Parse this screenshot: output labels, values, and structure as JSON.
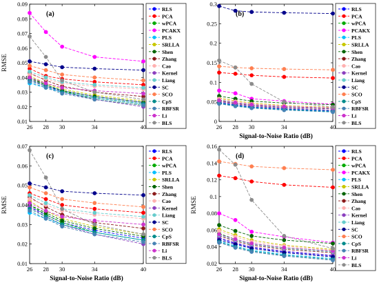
{
  "series_styles": [
    {
      "name": "RLS",
      "color": "#0000ff"
    },
    {
      "name": "PCA",
      "color": "#ff0000"
    },
    {
      "name": "wPCA",
      "color": "#00aa00"
    },
    {
      "name": "PCAKX",
      "color": "#ff00ff"
    },
    {
      "name": "PLS",
      "color": "#00bfff"
    },
    {
      "name": "SRLLA",
      "color": "#c8c800"
    },
    {
      "name": "Shen",
      "color": "#006400"
    },
    {
      "name": "Zhang",
      "color": "#8b1a1a"
    },
    {
      "name": "Cao",
      "color": "#ffb0b0"
    },
    {
      "name": "Kernel",
      "color": "#8b3fbf"
    },
    {
      "name": "Liang",
      "color": "#66cccc"
    },
    {
      "name": "SC",
      "color": "#00008b"
    },
    {
      "name": "SCO",
      "color": "#ff7f50"
    },
    {
      "name": "CpS",
      "color": "#008b8b"
    },
    {
      "name": "RBFSR",
      "color": "#4682b4"
    },
    {
      "name": "Li",
      "color": "#cc33cc"
    },
    {
      "name": "BLS",
      "color": "#8c8c8c"
    }
  ],
  "chart_data": [
    {
      "type": "line",
      "title": "(a)",
      "xlabel": "",
      "ylabel": "RMSE",
      "x": [
        26,
        28,
        30,
        34,
        40
      ],
      "xlim": [
        26,
        40
      ],
      "ylim": [
        0.01,
        0.09
      ],
      "yticks": [
        0.01,
        0.02,
        0.03,
        0.04,
        0.05,
        0.06,
        0.07,
        0.08,
        0.09
      ],
      "ytick_labels": [
        "0.01",
        "0.02",
        "0.03",
        "0.04",
        "0.05",
        "0.06",
        "0.07",
        "0.08",
        "0.09"
      ],
      "legend": [
        "RLS",
        "PCA",
        "wPCA",
        "PCAKX",
        "PLS",
        "SRLLA",
        "Shen",
        "Zhang",
        "Cao",
        "Kernel",
        "Liang",
        "SC",
        "SCO",
        "CpS",
        "RBFSR",
        "Li",
        "BLS"
      ],
      "series": [
        {
          "values": [
            0.038,
            0.034,
            0.031,
            0.027,
            0.023
          ]
        },
        {
          "values": [
            0.046,
            0.041,
            0.039,
            0.037,
            0.035
          ]
        },
        {
          "values": [
            0.039,
            0.035,
            0.031,
            0.025,
            0.021
          ]
        },
        {
          "values": [
            0.084,
            0.071,
            0.061,
            0.054,
            0.051
          ]
        },
        {
          "values": [
            0.036,
            0.033,
            0.03,
            0.026,
            0.022
          ]
        },
        {
          "values": [
            0.041,
            0.036,
            0.032,
            0.028,
            0.024
          ]
        },
        {
          "values": [
            0.04,
            0.035,
            0.031,
            0.027,
            0.023
          ]
        },
        {
          "values": [
            0.043,
            0.038,
            0.034,
            0.03,
            0.027
          ]
        },
        {
          "values": [
            0.042,
            0.039,
            0.036,
            0.034,
            0.032
          ]
        },
        {
          "values": [
            0.039,
            0.034,
            0.03,
            0.025,
            0.02
          ]
        },
        {
          "values": [
            0.044,
            0.04,
            0.037,
            0.035,
            0.033
          ]
        },
        {
          "values": [
            0.051,
            0.049,
            0.047,
            0.046,
            0.045
          ]
        },
        {
          "values": [
            0.048,
            0.045,
            0.042,
            0.04,
            0.038
          ]
        },
        {
          "values": [
            0.038,
            0.034,
            0.03,
            0.026,
            0.022
          ]
        },
        {
          "values": [
            0.037,
            0.033,
            0.029,
            0.025,
            0.021
          ]
        },
        {
          "values": [
            0.04,
            0.036,
            0.033,
            0.031,
            0.029
          ]
        },
        {
          "values": [
            0.068,
            0.054,
            0.038,
            0.03,
            0.025
          ]
        }
      ]
    },
    {
      "type": "line",
      "title": "(b)",
      "xlabel": "Signal-to-Noise Ratio (dB)",
      "ylabel": "",
      "x": [
        26,
        28,
        30,
        34,
        40
      ],
      "xlim": [
        26,
        40
      ],
      "ylim": [
        0,
        0.3
      ],
      "yticks": [
        0,
        0.05,
        0.1,
        0.15,
        0.2,
        0.25,
        0.3
      ],
      "ytick_labels": [
        "0",
        "0.05",
        "0.1",
        "0.15",
        "0.2",
        "0.25",
        "0.3"
      ],
      "legend": [
        "RLS",
        "PCA",
        "wPCA",
        "PCAKX",
        "PLS",
        "SRLLA",
        "Shen",
        "Zhang",
        "Cao",
        "Kernel",
        "Liang",
        "SC",
        "SCO",
        "CpS",
        "RBFSR",
        "Li",
        "BLS"
      ],
      "series": [
        {
          "values": [
            0.048,
            0.042,
            0.037,
            0.032,
            0.027
          ]
        },
        {
          "values": [
            0.125,
            0.122,
            0.118,
            0.114,
            0.111
          ]
        },
        {
          "values": [
            0.055,
            0.048,
            0.043,
            0.038,
            0.034
          ]
        },
        {
          "values": [
            0.079,
            0.072,
            0.058,
            0.052,
            0.044
          ]
        },
        {
          "values": [
            0.046,
            0.04,
            0.035,
            0.03,
            0.025
          ]
        },
        {
          "values": [
            0.06,
            0.053,
            0.047,
            0.041,
            0.036
          ]
        },
        {
          "values": [
            0.065,
            0.058,
            0.052,
            0.047,
            0.043
          ]
        },
        {
          "values": [
            0.052,
            0.046,
            0.041,
            0.036,
            0.032
          ]
        },
        {
          "values": [
            0.058,
            0.051,
            0.045,
            0.04,
            0.035
          ]
        },
        {
          "values": [
            0.05,
            0.044,
            0.039,
            0.034,
            0.029
          ]
        },
        {
          "values": [
            0.053,
            0.047,
            0.042,
            0.037,
            0.033
          ]
        },
        {
          "values": [
            0.295,
            0.283,
            0.28,
            0.278,
            0.276
          ]
        },
        {
          "values": [
            0.141,
            0.138,
            0.136,
            0.134,
            0.132
          ]
        },
        {
          "values": [
            0.047,
            0.041,
            0.036,
            0.031,
            0.026
          ]
        },
        {
          "values": [
            0.045,
            0.039,
            0.034,
            0.029,
            0.024
          ]
        },
        {
          "values": [
            0.054,
            0.048,
            0.043,
            0.038,
            0.034
          ]
        },
        {
          "values": [
            0.156,
            0.138,
            0.096,
            0.05,
            0.037
          ]
        }
      ]
    },
    {
      "type": "line",
      "title": "(c)",
      "xlabel": "Signal-to-Noise Ratio (dB)",
      "ylabel": "RMSE",
      "x": [
        26,
        28,
        30,
        34,
        40
      ],
      "xlim": [
        26,
        40
      ],
      "ylim": [
        0.01,
        0.07
      ],
      "yticks": [
        0.01,
        0.02,
        0.03,
        0.04,
        0.05,
        0.06,
        0.07
      ],
      "ytick_labels": [
        "0.01",
        "0.02",
        "0.03",
        "0.04",
        "0.05",
        "0.06",
        "0.07"
      ],
      "legend": [
        "RLS",
        "PCA",
        "wPCA",
        "PLS",
        "SRLLA",
        "Shen",
        "Zhang",
        "Cao",
        "Kernel",
        "Liang",
        "SC",
        "SCO",
        "CpS",
        "RBFSR",
        "Li",
        "BLS"
      ],
      "series": [
        {
          "values": [
            0.039,
            0.035,
            0.031,
            0.027,
            0.023
          ]
        },
        {
          "values": [
            0.046,
            0.043,
            0.04,
            0.038,
            0.036
          ]
        },
        {
          "values": [
            0.04,
            0.035,
            0.031,
            0.026,
            0.022
          ]
        },
        {
          "values": [
            0.036,
            0.033,
            0.03,
            0.026,
            0.022
          ]
        },
        {
          "values": [
            0.042,
            0.037,
            0.033,
            0.029,
            0.025
          ]
        },
        {
          "values": [
            0.04,
            0.036,
            0.032,
            0.028,
            0.024
          ]
        },
        {
          "values": [
            0.044,
            0.039,
            0.035,
            0.031,
            0.028
          ]
        },
        {
          "values": [
            0.043,
            0.04,
            0.037,
            0.035,
            0.033
          ]
        },
        {
          "values": [
            0.039,
            0.034,
            0.03,
            0.025,
            0.02
          ]
        },
        {
          "values": [
            0.045,
            0.041,
            0.038,
            0.036,
            0.034
          ]
        },
        {
          "values": [
            0.051,
            0.049,
            0.047,
            0.046,
            0.045
          ]
        },
        {
          "values": [
            0.049,
            0.046,
            0.043,
            0.041,
            0.039
          ]
        },
        {
          "values": [
            0.038,
            0.034,
            0.03,
            0.026,
            0.022
          ]
        },
        {
          "values": [
            0.037,
            0.033,
            0.029,
            0.025,
            0.021
          ]
        },
        {
          "values": [
            0.041,
            0.037,
            0.034,
            0.032,
            0.03
          ]
        },
        {
          "values": [
            0.068,
            0.054,
            0.038,
            0.03,
            0.025
          ]
        }
      ]
    },
    {
      "type": "line",
      "title": "(d)",
      "xlabel": "Signal-to-Noise Ratio (dB)",
      "ylabel": "RMSE",
      "x": [
        26,
        28,
        30,
        34,
        40
      ],
      "xlim": [
        26,
        40
      ],
      "ylim": [
        0.02,
        0.16
      ],
      "yticks": [
        0.02,
        0.04,
        0.06,
        0.08,
        0.1,
        0.12,
        0.14,
        0.16
      ],
      "ytick_labels": [
        "0.02",
        "0.04",
        "0.06",
        "0.08",
        "0.1",
        "0.12",
        "0.14",
        "0.16"
      ],
      "legend": [
        "RLS",
        "PCA",
        "wPCA",
        "PCAKX",
        "PLS",
        "SRLLA",
        "Shen",
        "Zhang",
        "Cao",
        "Kernel",
        "Liang",
        "SC",
        "SCO",
        "CpS",
        "RBFSR",
        "Li",
        "BLS"
      ],
      "series": [
        {
          "values": [
            0.05,
            0.044,
            0.039,
            0.034,
            0.029
          ]
        },
        {
          "values": [
            0.125,
            0.122,
            0.118,
            0.114,
            0.111
          ]
        },
        {
          "values": [
            0.056,
            0.049,
            0.044,
            0.039,
            0.035
          ]
        },
        {
          "values": [
            0.08,
            0.072,
            0.058,
            0.052,
            0.045
          ]
        },
        {
          "values": [
            0.047,
            0.041,
            0.036,
            0.031,
            0.026
          ]
        },
        {
          "values": [
            0.061,
            0.054,
            0.048,
            0.042,
            0.037
          ]
        },
        {
          "values": [
            0.066,
            0.059,
            0.053,
            0.048,
            0.044
          ]
        },
        {
          "values": [
            0.053,
            0.047,
            0.042,
            0.037,
            0.033
          ]
        },
        {
          "values": [
            0.059,
            0.052,
            0.046,
            0.041,
            0.036
          ]
        },
        {
          "values": [
            0.051,
            0.045,
            0.04,
            0.035,
            0.03
          ]
        },
        {
          "values": [
            0.054,
            0.048,
            0.043,
            0.038,
            0.034
          ]
        },
        {
          "values": [
            0.048,
            0.043,
            0.038,
            0.033,
            0.028
          ]
        },
        {
          "values": [
            0.142,
            0.139,
            0.136,
            0.134,
            0.132
          ]
        },
        {
          "values": [
            0.046,
            0.04,
            0.035,
            0.03,
            0.025
          ]
        },
        {
          "values": [
            0.045,
            0.039,
            0.034,
            0.029,
            0.024
          ]
        },
        {
          "values": [
            0.055,
            0.049,
            0.044,
            0.039,
            0.035
          ]
        },
        {
          "values": [
            0.156,
            0.138,
            0.096,
            0.053,
            0.038
          ]
        }
      ]
    }
  ]
}
